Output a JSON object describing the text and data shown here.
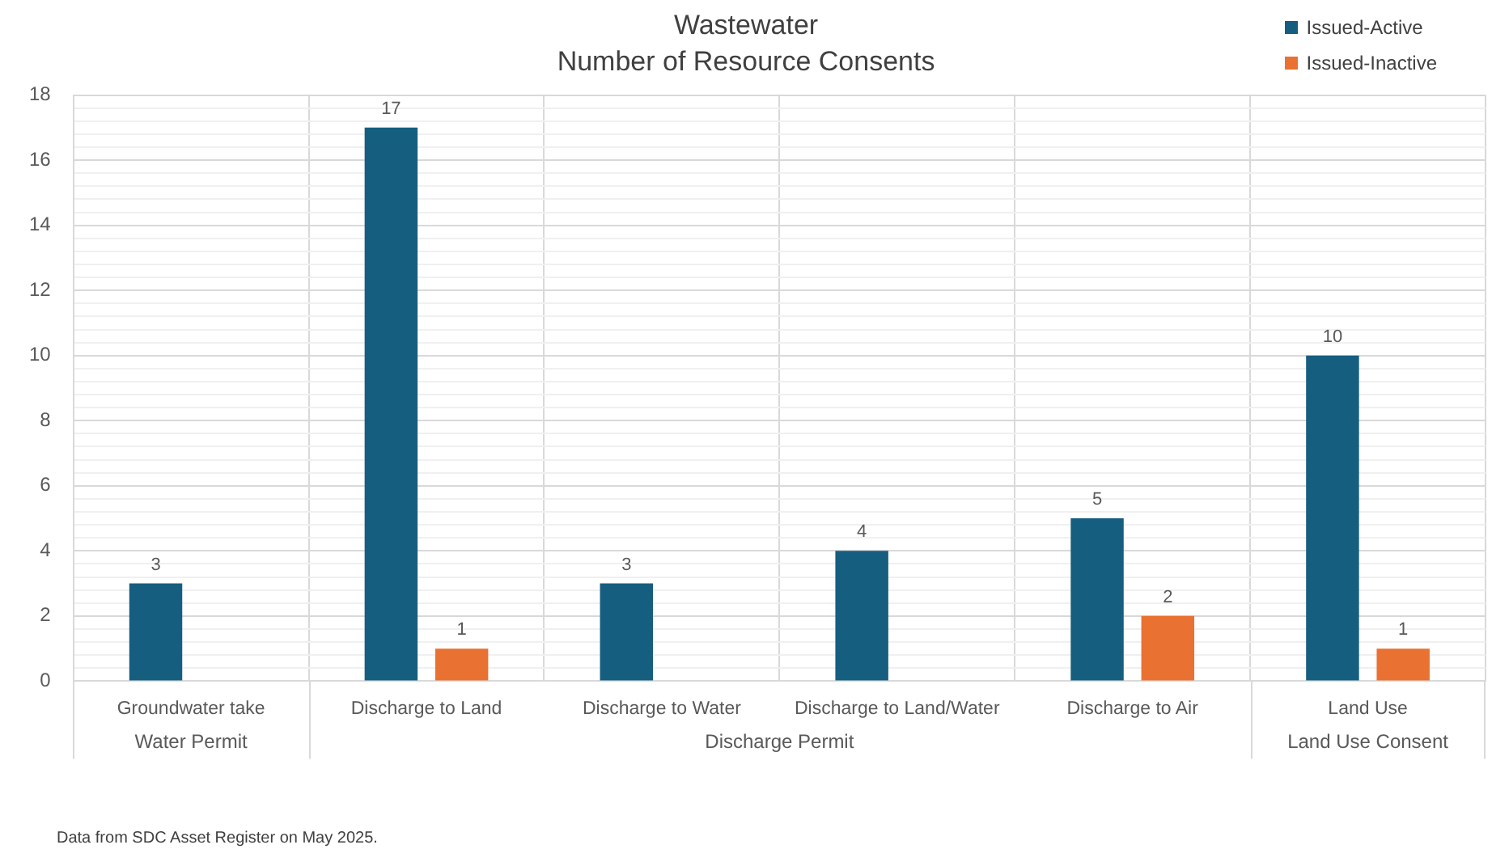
{
  "chart_data": {
    "type": "bar",
    "title": "Wastewater",
    "subtitle": "Number of Resource Consents",
    "categories": [
      "Groundwater take",
      "Discharge to Land",
      "Discharge to Water",
      "Discharge to Land/Water",
      "Discharge to Air",
      "Land Use"
    ],
    "series": [
      {
        "name": "Issued-Active",
        "color": "#155e7f",
        "values": [
          3,
          17,
          3,
          4,
          5,
          10
        ]
      },
      {
        "name": "Issued-Inactive",
        "color": "#e97132",
        "values": [
          null,
          1,
          null,
          null,
          2,
          1
        ]
      }
    ],
    "ylim": [
      0,
      18
    ],
    "yticks": [
      0,
      {
        "value": 0.4,
        "label": null
      },
      {
        "value": 0.8,
        "label": null
      },
      {
        "value": 1.2,
        "label": null
      },
      {
        "value": 1.6,
        "label": null
      },
      2,
      {
        "value": 2.4,
        "label": null
      },
      {
        "value": 2.8,
        "label": null
      },
      {
        "value": 3.2,
        "label": null
      },
      {
        "value": 3.6,
        "label": null
      },
      4,
      {
        "value": 4.4,
        "label": null
      },
      {
        "value": 4.8,
        "label": null
      },
      {
        "value": 5.2,
        "label": null
      },
      {
        "value": 5.6,
        "label": null
      },
      6,
      {
        "value": 6.4,
        "label": null
      },
      {
        "value": 6.8,
        "label": null
      },
      {
        "value": 7.2,
        "label": null
      },
      {
        "value": 7.6,
        "label": null
      },
      8,
      {
        "value": 8.4,
        "label": null
      },
      {
        "value": 8.8,
        "label": null
      },
      {
        "value": 9.2,
        "label": null
      },
      {
        "value": 9.6,
        "label": null
      },
      10,
      {
        "value": 10.4,
        "label": null
      },
      {
        "value": 10.8,
        "label": null
      },
      {
        "value": 11.2,
        "label": null
      },
      {
        "value": 11.6,
        "label": null
      },
      12,
      {
        "value": 12.4,
        "label": null
      },
      {
        "value": 12.8,
        "label": null
      },
      {
        "value": 13.2,
        "label": null
      },
      {
        "value": 13.6,
        "label": null
      },
      14,
      {
        "value": 14.4,
        "label": null
      },
      {
        "value": 14.8,
        "label": null
      },
      {
        "value": 15.2,
        "label": null
      },
      {
        "value": 15.6,
        "label": null
      },
      16,
      {
        "value": 16.4,
        "label": null
      },
      {
        "value": 16.8,
        "label": null
      },
      {
        "value": 17.2,
        "label": null
      },
      {
        "value": 17.6,
        "label": null
      },
      18
    ],
    "grid": true,
    "legend": "top right",
    "data_labels": true,
    "annotations": [
      "Water Permit",
      "Discharge Permit",
      "Land Use Consent",
      "Data from SDC Asset Register on May 2025."
    ]
  }
}
